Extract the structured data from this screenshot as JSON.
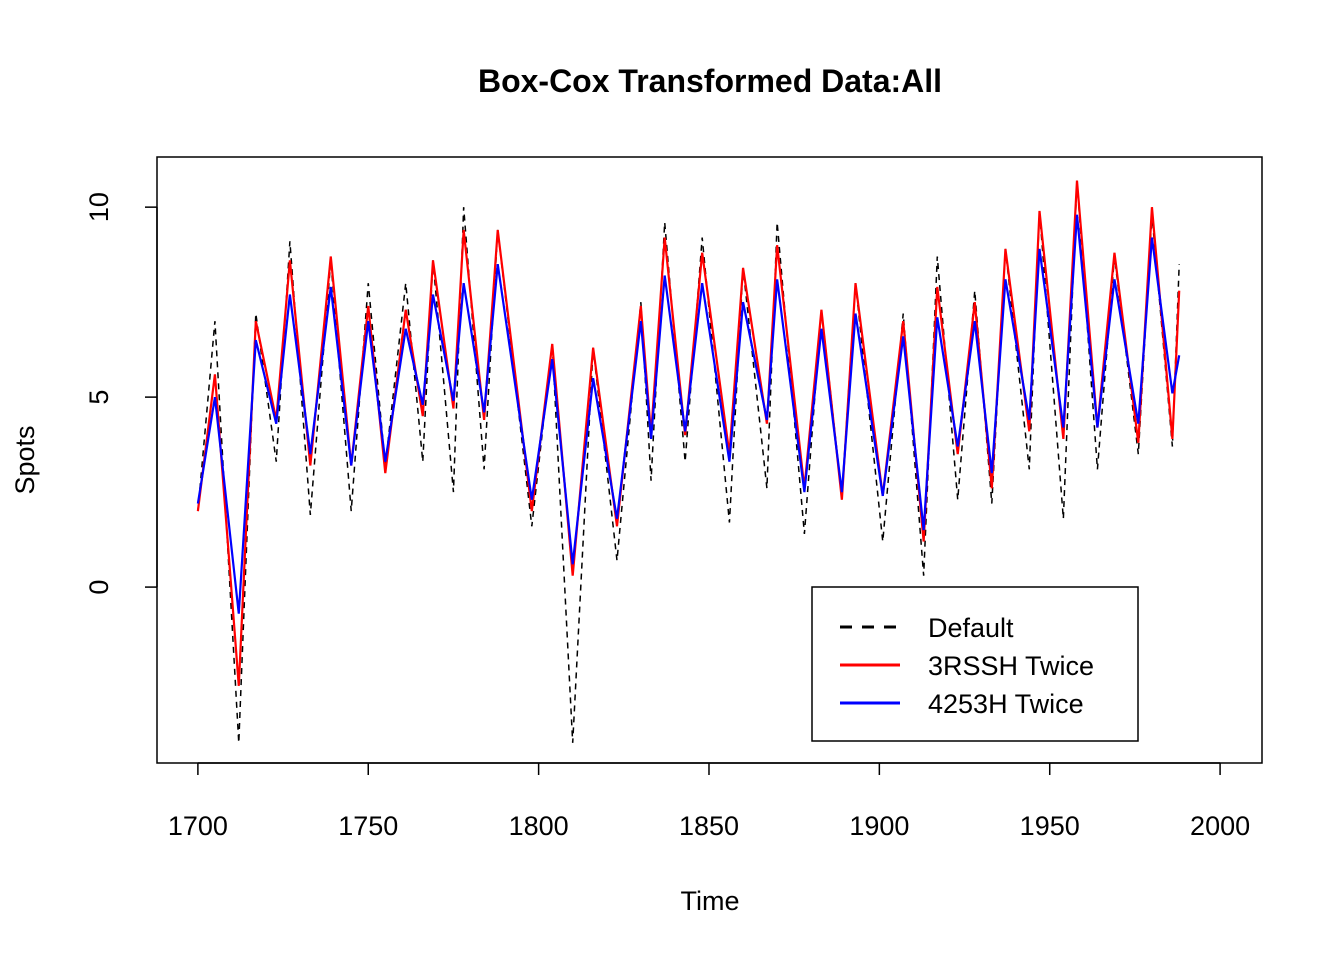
{
  "chart_data": {
    "type": "line",
    "title": "Box-Cox Transformed Data:All",
    "x_label": "Time",
    "y_label": "Spots",
    "x": [
      1700,
      1705,
      1712,
      1717,
      1723,
      1727,
      1733,
      1739,
      1745,
      1750,
      1755,
      1761,
      1766,
      1769,
      1775,
      1778,
      1784,
      1788,
      1798,
      1804,
      1810,
      1816,
      1823,
      1830,
      1833,
      1837,
      1843,
      1848,
      1856,
      1860,
      1867,
      1870,
      1878,
      1883,
      1889,
      1893,
      1901,
      1907,
      1913,
      1917,
      1923,
      1928,
      1933,
      1937,
      1944,
      1947,
      1954,
      1958,
      1964,
      1969,
      1976,
      1980,
      1986,
      1988
    ],
    "series": [
      {
        "name": "Default",
        "color": "#000000",
        "dash": true,
        "values": [
          2.0,
          7.0,
          -4.1,
          7.2,
          3.3,
          9.1,
          1.9,
          8.6,
          2.0,
          8.0,
          3.2,
          8.0,
          3.3,
          8.6,
          2.5,
          10.0,
          3.1,
          9.4,
          1.6,
          6.4,
          -4.1,
          6.3,
          0.7,
          7.5,
          2.8,
          9.6,
          3.3,
          9.2,
          1.7,
          8.4,
          2.6,
          9.6,
          1.4,
          7.3,
          2.4,
          8.0,
          1.2,
          7.2,
          0.3,
          8.7,
          2.3,
          7.8,
          2.2,
          8.9,
          3.1,
          9.9,
          1.8,
          10.7,
          3.1,
          8.7,
          3.5,
          9.8,
          3.7,
          8.5
        ]
      },
      {
        "name": "3RSSH Twice",
        "color": "#ff0000",
        "dash": false,
        "values": [
          2.0,
          5.6,
          -2.6,
          7.0,
          4.4,
          8.6,
          3.2,
          8.7,
          3.2,
          7.4,
          3.0,
          7.3,
          4.5,
          8.6,
          4.7,
          9.4,
          4.4,
          9.4,
          2.0,
          6.4,
          0.3,
          6.3,
          1.6,
          7.4,
          4.0,
          9.2,
          4.0,
          8.8,
          3.5,
          8.4,
          4.3,
          9.0,
          2.6,
          7.3,
          2.3,
          8.0,
          2.4,
          7.0,
          1.2,
          7.9,
          3.5,
          7.5,
          2.6,
          8.9,
          4.1,
          9.9,
          3.9,
          10.7,
          4.2,
          8.8,
          3.8,
          10.0,
          3.9,
          7.8
        ]
      },
      {
        "name": "4253H Twice",
        "color": "#0000ff",
        "dash": false,
        "values": [
          2.2,
          5.0,
          -0.7,
          6.5,
          4.3,
          7.7,
          3.5,
          7.9,
          3.2,
          7.0,
          3.3,
          6.8,
          4.8,
          7.7,
          4.9,
          8.0,
          4.6,
          8.5,
          2.3,
          6.0,
          0.6,
          5.5,
          1.8,
          7.0,
          3.9,
          8.2,
          4.1,
          8.0,
          3.3,
          7.5,
          4.4,
          8.1,
          2.5,
          6.8,
          2.5,
          7.2,
          2.4,
          6.6,
          1.5,
          7.1,
          3.7,
          7.0,
          3.0,
          8.1,
          4.4,
          8.9,
          4.2,
          9.8,
          4.2,
          8.1,
          4.3,
          9.2,
          5.1,
          6.1
        ]
      }
    ],
    "xlim": [
      1688,
      2012.3
    ],
    "ylim": [
      -4.63,
      11.32
    ],
    "xticks": [
      1700,
      1750,
      1800,
      1850,
      1900,
      1950,
      2000
    ],
    "yticks": [
      0,
      5,
      10
    ],
    "legend": "bottom-right"
  }
}
